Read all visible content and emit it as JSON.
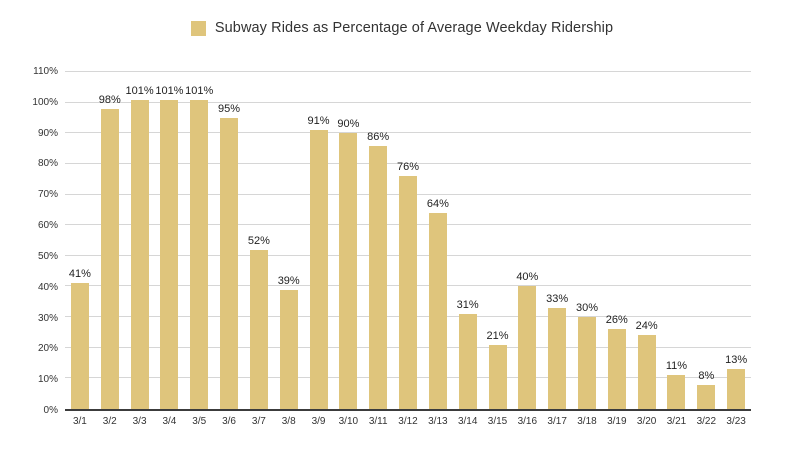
{
  "chart_data": {
    "type": "bar",
    "title": "Subway Rides as Percentage of Average Weekday Ridership",
    "categories": [
      "3/1",
      "3/2",
      "3/3",
      "3/4",
      "3/5",
      "3/6",
      "3/7",
      "3/8",
      "3/9",
      "3/10",
      "3/11",
      "3/12",
      "3/13",
      "3/14",
      "3/15",
      "3/16",
      "3/17",
      "3/18",
      "3/19",
      "3/20",
      "3/21",
      "3/22",
      "3/23"
    ],
    "values": [
      41,
      98,
      101,
      101,
      101,
      95,
      52,
      39,
      91,
      90,
      86,
      76,
      64,
      31,
      21,
      40,
      33,
      30,
      26,
      24,
      11,
      8,
      13
    ],
    "value_suffix": "%",
    "data_labels": [
      "41%",
      "98%",
      "101%",
      "101%",
      "101%",
      "95%",
      "52%",
      "39%",
      "91%",
      "90%",
      "86%",
      "76%",
      "64%",
      "31%",
      "21%",
      "40%",
      "33%",
      "30%",
      "26%",
      "24%",
      "11%",
      "8%",
      "13%"
    ],
    "xlabel": "",
    "ylabel": "",
    "ylim": [
      0,
      110
    ],
    "ytick_step": 10,
    "ytick_labels": [
      "0%",
      "10%",
      "20%",
      "30%",
      "40%",
      "50%",
      "60%",
      "70%",
      "80%",
      "90%",
      "100%",
      "110%"
    ],
    "grid": true,
    "legend_position": "top-center",
    "colors": {
      "bar": "#DFC57C",
      "gridline": "#D6D6D6",
      "axis_line": "#3C3C3C",
      "value_label": "#1F1F1F",
      "tick_label": "#333333",
      "title": "#333333",
      "background": "#FFFFFF"
    }
  }
}
